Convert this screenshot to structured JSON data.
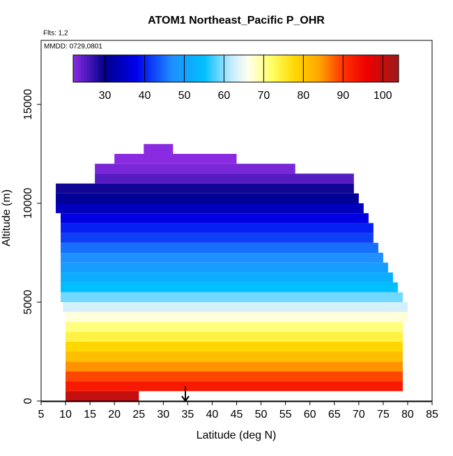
{
  "chart_data": {
    "type": "heatmap",
    "title": "ATOM1 Northeast_Pacific P_OHR",
    "subtitle": "Flts: 1,2",
    "annotation": "MMDD: 0729,0801",
    "x_label": "Latitude (deg N)",
    "y_label": "Altitude (m)",
    "xlim": [
      5,
      85
    ],
    "xticks": [
      5,
      10,
      15,
      20,
      25,
      30,
      35,
      40,
      45,
      50,
      55,
      60,
      65,
      70,
      75,
      80,
      85
    ],
    "ylim": [
      0,
      18240
    ],
    "yticks": [
      0,
      5000,
      10000,
      15000
    ],
    "clim": [
      22,
      104
    ],
    "cticks": [
      30,
      40,
      50,
      60,
      70,
      80,
      90,
      100
    ],
    "colorscale": [
      [
        22,
        "#8a2be2"
      ],
      [
        30,
        "#00008b"
      ],
      [
        38,
        "#0000ee"
      ],
      [
        47,
        "#1e90ff"
      ],
      [
        55,
        "#00bfff"
      ],
      [
        62,
        "#c6ecff"
      ],
      [
        66,
        "#fffff0"
      ],
      [
        72,
        "#ffff66"
      ],
      [
        78,
        "#ffd700"
      ],
      [
        84,
        "#ffa500"
      ],
      [
        90,
        "#ff3300"
      ],
      [
        96,
        "#ee0000"
      ],
      [
        104,
        "#9b1b1b"
      ]
    ],
    "cells": [
      {
        "alt": [
          0,
          500
        ],
        "lat": [
          10,
          25
        ],
        "value": 100
      },
      {
        "alt": [
          500,
          1000
        ],
        "lat": [
          10,
          79
        ],
        "value": 93
      },
      {
        "alt": [
          1000,
          1500
        ],
        "lat": [
          10,
          79
        ],
        "value": 89
      },
      {
        "alt": [
          1500,
          2000
        ],
        "lat": [
          10,
          79
        ],
        "value": 85
      },
      {
        "alt": [
          2000,
          2500
        ],
        "lat": [
          10,
          79
        ],
        "value": 81
      },
      {
        "alt": [
          2500,
          3000
        ],
        "lat": [
          10,
          79
        ],
        "value": 78
      },
      {
        "alt": [
          3000,
          3500
        ],
        "lat": [
          10,
          79
        ],
        "value": 74
      },
      {
        "alt": [
          3500,
          4000
        ],
        "lat": [
          10,
          79
        ],
        "value": 71
      },
      {
        "alt": [
          4000,
          4500
        ],
        "lat": [
          10,
          80
        ],
        "value": 67
      },
      {
        "alt": [
          4500,
          5000
        ],
        "lat": [
          9.5,
          80
        ],
        "value": 63
      },
      {
        "alt": [
          5000,
          5500
        ],
        "lat": [
          9,
          79
        ],
        "value": 59
      },
      {
        "alt": [
          5500,
          6000
        ],
        "lat": [
          9,
          78
        ],
        "value": 55
      },
      {
        "alt": [
          6000,
          6500
        ],
        "lat": [
          9,
          77
        ],
        "value": 52
      },
      {
        "alt": [
          6500,
          7000
        ],
        "lat": [
          9,
          76
        ],
        "value": 49
      },
      {
        "alt": [
          7000,
          7500
        ],
        "lat": [
          9,
          75
        ],
        "value": 47
      },
      {
        "alt": [
          7500,
          8000
        ],
        "lat": [
          9,
          74
        ],
        "value": 45
      },
      {
        "alt": [
          8000,
          8500
        ],
        "lat": [
          9,
          73
        ],
        "value": 42
      },
      {
        "alt": [
          8500,
          9000
        ],
        "lat": [
          9,
          73
        ],
        "value": 40
      },
      {
        "alt": [
          9000,
          9500
        ],
        "lat": [
          9,
          72
        ],
        "value": 37
      },
      {
        "alt": [
          9500,
          10000
        ],
        "lat": [
          8,
          71
        ],
        "value": 34
      },
      {
        "alt": [
          10000,
          10500
        ],
        "lat": [
          8,
          70
        ],
        "value": 31
      },
      {
        "alt": [
          10500,
          11000
        ],
        "lat": [
          8,
          69
        ],
        "value": 29
      },
      {
        "alt": [
          11000,
          11500
        ],
        "lat": [
          16,
          69
        ],
        "value": 25
      },
      {
        "alt": [
          11500,
          12000
        ],
        "lat": [
          16,
          57
        ],
        "value": 23
      },
      {
        "alt": [
          12000,
          12500
        ],
        "lat": [
          20,
          45
        ],
        "value": 22
      },
      {
        "alt": [
          12500,
          13000
        ],
        "lat": [
          26,
          32
        ],
        "value": 22
      }
    ]
  }
}
